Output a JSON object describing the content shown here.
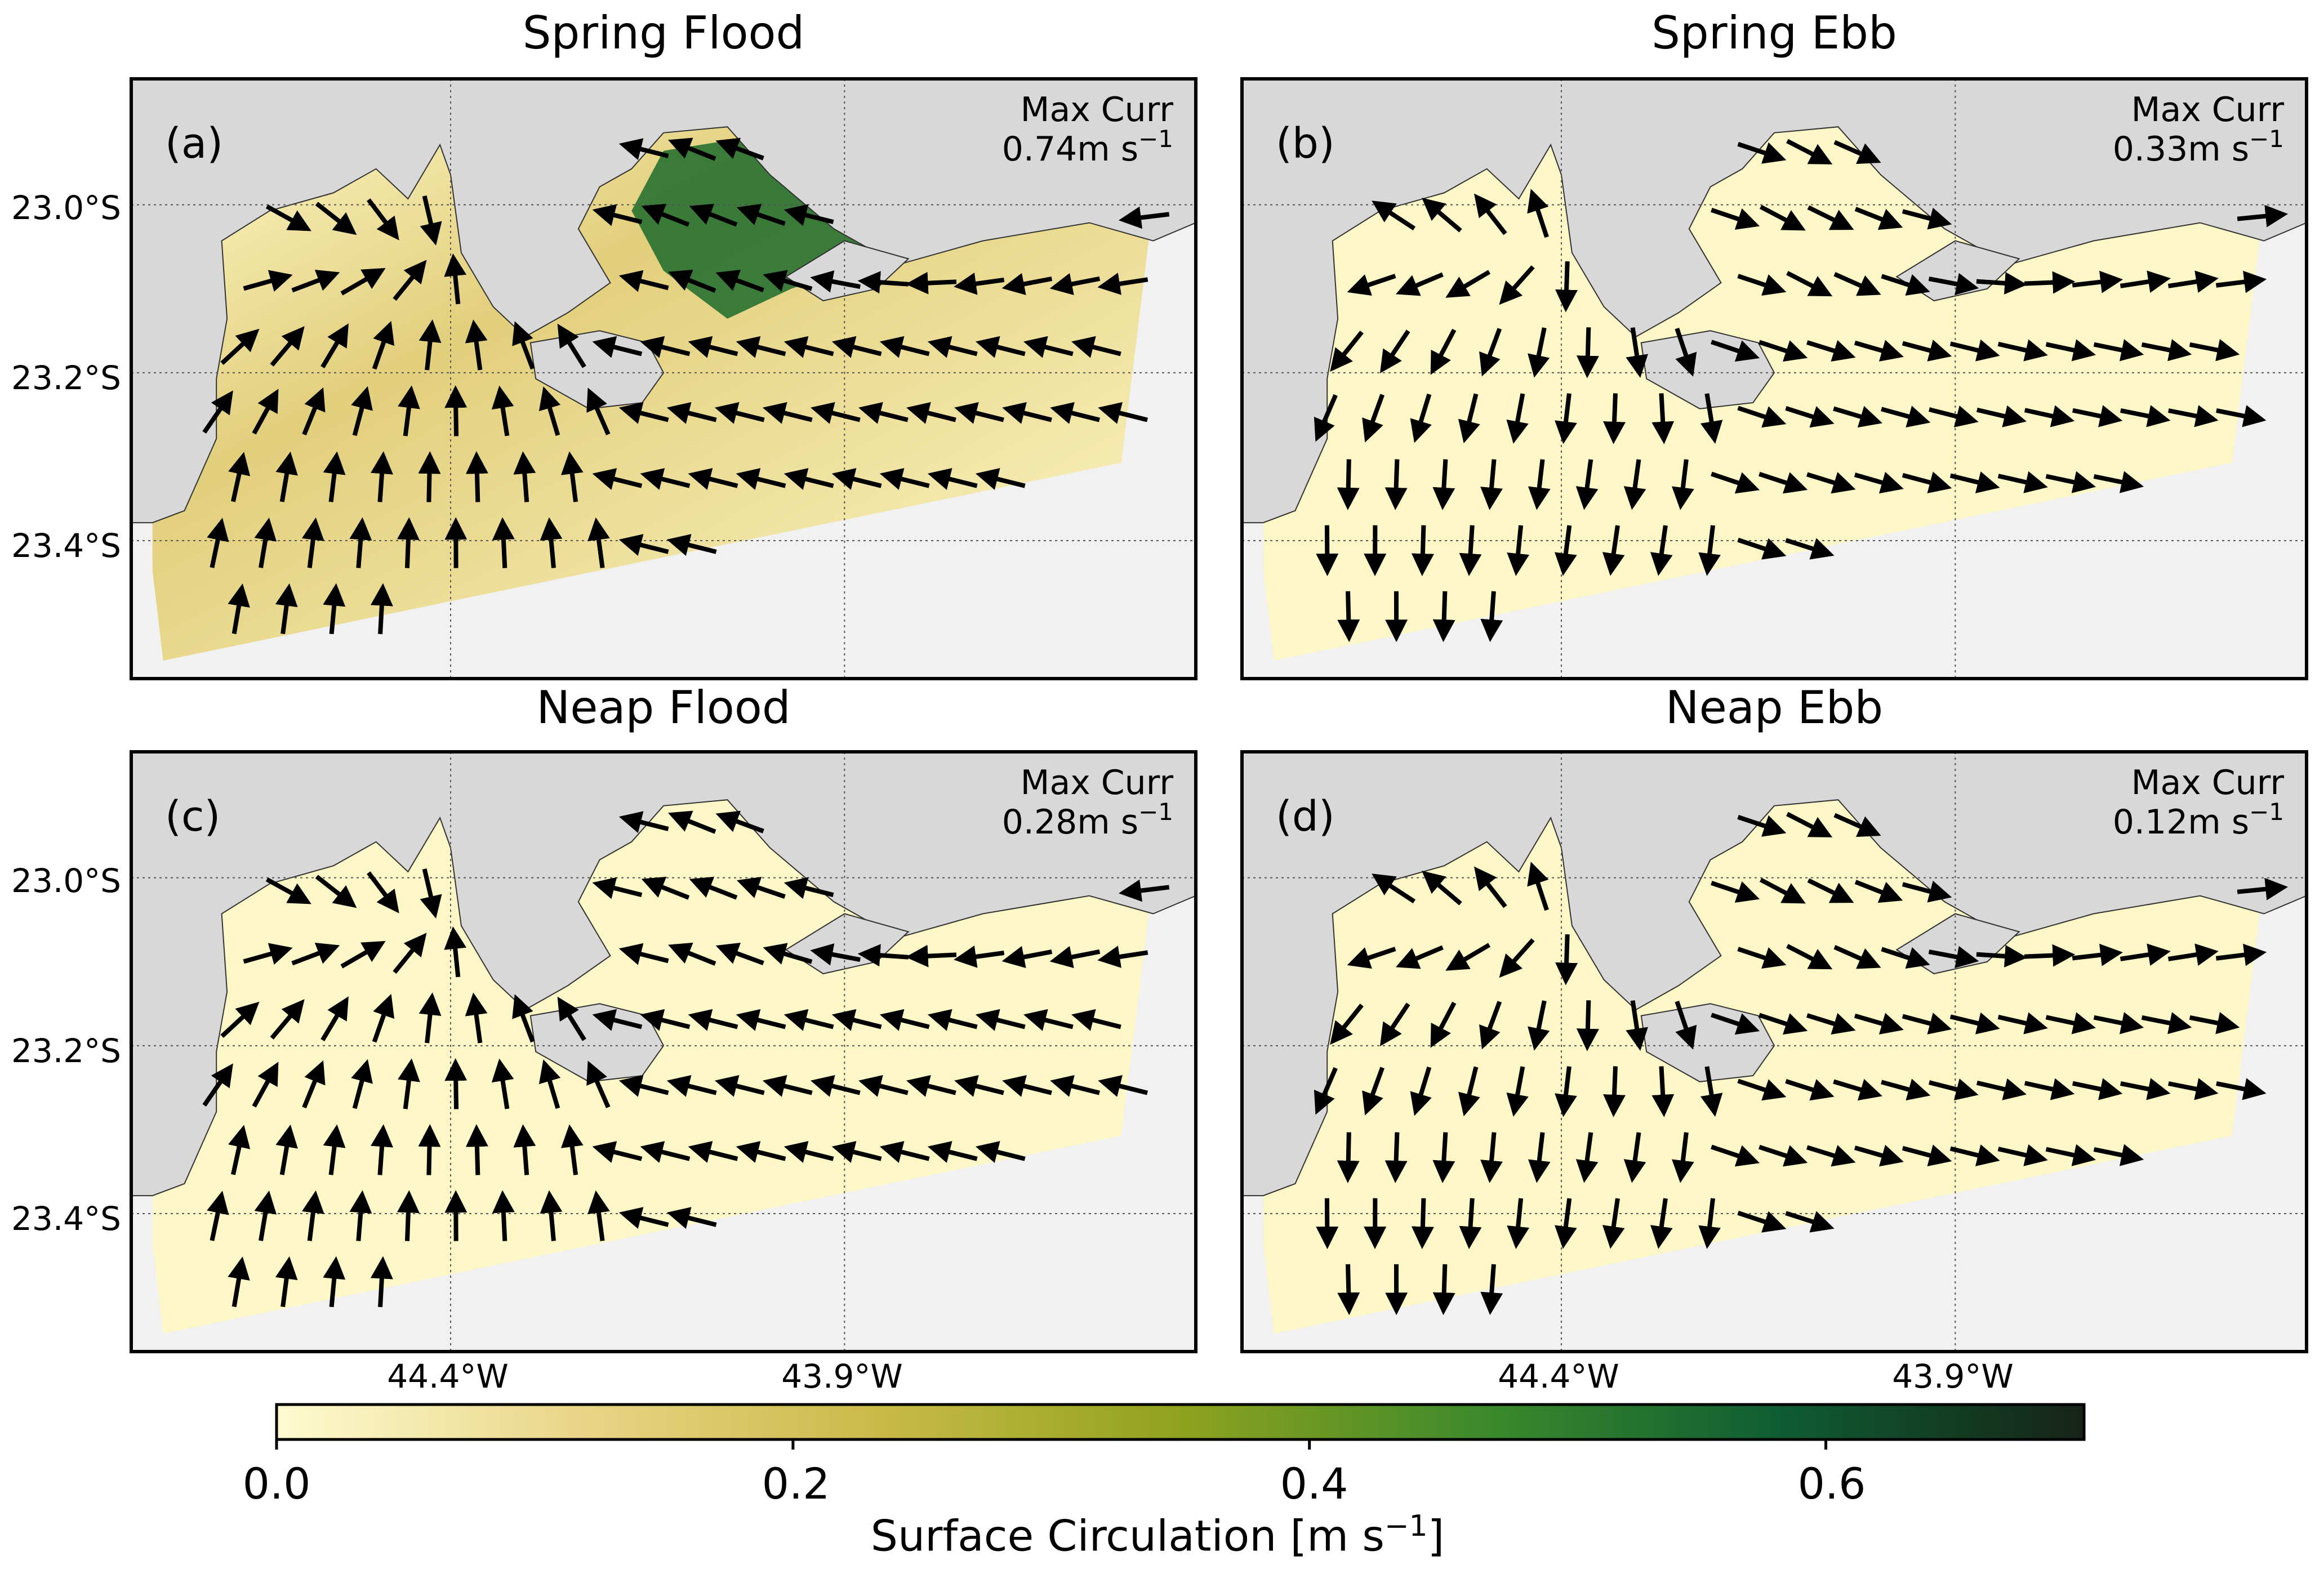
{
  "colors": {
    "water_light": "#fdf6c7",
    "water_mid": "#e2cf7c",
    "water_dark": "#1c6b2c",
    "land": "#d8d8d8",
    "ocean": "#f1f1f1",
    "arrow": "#000000"
  },
  "chart_data": [
    {
      "type": "heatmap",
      "panel_label": "(a)",
      "title": "Spring Flood",
      "annotation": {
        "line1": "Max Curr",
        "value": "0.74m s",
        "exponent": "−1"
      },
      "max_current": 0.74,
      "lat_ticks": [
        "23.0°S",
        "23.2°S",
        "23.4°S"
      ],
      "lon_ticks": [],
      "flow": "flood",
      "strong_zone": true
    },
    {
      "type": "heatmap",
      "panel_label": "(b)",
      "title": "Spring Ebb",
      "annotation": {
        "line1": "Max Curr",
        "value": "0.33m s",
        "exponent": "−1"
      },
      "max_current": 0.33,
      "lat_ticks": [],
      "lon_ticks": [],
      "flow": "ebb",
      "strong_zone": false
    },
    {
      "type": "heatmap",
      "panel_label": "(c)",
      "title": "Neap Flood",
      "annotation": {
        "line1": "Max Curr",
        "value": "0.28m s",
        "exponent": "−1"
      },
      "max_current": 0.28,
      "lat_ticks": [
        "23.0°S",
        "23.2°S",
        "23.4°S"
      ],
      "lon_ticks": [
        "44.4°W",
        "43.9°W"
      ],
      "flow": "flood",
      "strong_zone": false
    },
    {
      "type": "heatmap",
      "panel_label": "(d)",
      "title": "Neap Ebb",
      "annotation": {
        "line1": "Max Curr",
        "value": "0.12m s",
        "exponent": "−1"
      },
      "max_current": 0.12,
      "lat_ticks": [],
      "lon_ticks": [
        "44.4°W",
        "43.9°W"
      ],
      "flow": "ebb",
      "strong_zone": false
    }
  ],
  "colorbar": {
    "ticks": [
      "0.0",
      "0.2",
      "0.4",
      "0.6"
    ],
    "tick_values": [
      0.0,
      0.2,
      0.4,
      0.6
    ],
    "range": [
      0.0,
      0.7
    ],
    "label": "Surface Circulation [m s",
    "label_exponent": "−1",
    "label_close": "]",
    "stops": [
      "#fefbd0",
      "#e9d588",
      "#c9ba48",
      "#8fa21e",
      "#3d8a2c",
      "#0f5c33",
      "#162418"
    ]
  }
}
